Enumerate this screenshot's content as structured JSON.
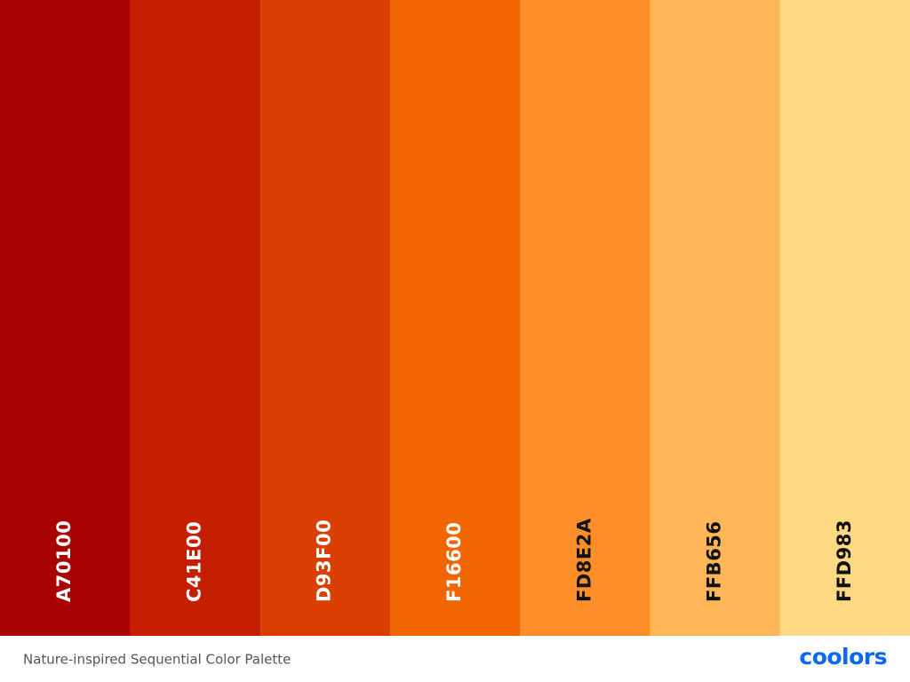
{
  "palette": {
    "swatches": [
      {
        "label": "A70100",
        "color": "#A70100"
      },
      {
        "label": "C41E00",
        "color": "#C41E00"
      },
      {
        "label": "D93F00",
        "color": "#D93F00"
      },
      {
        "label": "F16600",
        "color": "#F16600"
      },
      {
        "label": "FD8E2A",
        "color": "#FD8E2A"
      },
      {
        "label": "FFB656",
        "color": "#FFB656"
      },
      {
        "label": "FFD983",
        "color": "#FFD983"
      }
    ]
  },
  "footer": {
    "title": "Nature-inspired Sequential Color Palette",
    "logo": "coolors"
  }
}
